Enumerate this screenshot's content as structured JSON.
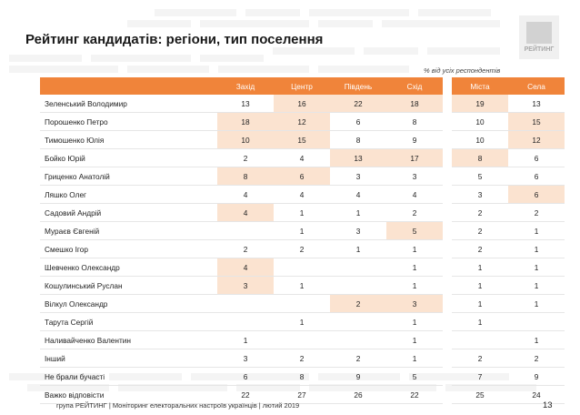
{
  "title": "Рейтинг кандидатів: регіони, тип поселення",
  "logo_text": "РЕЙТИНГ",
  "note": "% від усіх респондентів",
  "columns": [
    "Захід",
    "Центр",
    "Південь",
    "Схід",
    "Міста",
    "Села"
  ],
  "rows": [
    {
      "name": "Зеленський Володимир",
      "v": [
        "13",
        "16",
        "22",
        "18",
        "19",
        "13"
      ],
      "hl": [
        false,
        true,
        true,
        true,
        true,
        false
      ]
    },
    {
      "name": "Порошенко Петро",
      "v": [
        "18",
        "12",
        "6",
        "8",
        "10",
        "15"
      ],
      "hl": [
        true,
        true,
        false,
        false,
        false,
        true
      ]
    },
    {
      "name": "Тимошенко Юлія",
      "v": [
        "10",
        "15",
        "8",
        "9",
        "10",
        "12"
      ],
      "hl": [
        true,
        true,
        false,
        false,
        false,
        true
      ]
    },
    {
      "name": "Бойко Юрій",
      "v": [
        "2",
        "4",
        "13",
        "17",
        "8",
        "6"
      ],
      "hl": [
        false,
        false,
        true,
        true,
        true,
        false
      ]
    },
    {
      "name": "Гриценко Анатолій",
      "v": [
        "8",
        "6",
        "3",
        "3",
        "5",
        "6"
      ],
      "hl": [
        true,
        true,
        false,
        false,
        false,
        false
      ]
    },
    {
      "name": "Ляшко Олег",
      "v": [
        "4",
        "4",
        "4",
        "4",
        "3",
        "6"
      ],
      "hl": [
        false,
        false,
        false,
        false,
        false,
        true
      ]
    },
    {
      "name": "Садовий Андрій",
      "v": [
        "4",
        "1",
        "1",
        "2",
        "2",
        "2"
      ],
      "hl": [
        true,
        false,
        false,
        false,
        false,
        false
      ]
    },
    {
      "name": "Мураєв Євгеній",
      "v": [
        "",
        "1",
        "3",
        "5",
        "2",
        "1"
      ],
      "hl": [
        false,
        false,
        false,
        true,
        false,
        false
      ]
    },
    {
      "name": "Смешко Ігор",
      "v": [
        "2",
        "2",
        "1",
        "1",
        "2",
        "1"
      ],
      "hl": [
        false,
        false,
        false,
        false,
        false,
        false
      ]
    },
    {
      "name": "Шевченко Олександр",
      "v": [
        "4",
        "",
        "",
        "1",
        "1",
        "1"
      ],
      "hl": [
        true,
        false,
        false,
        false,
        false,
        false
      ]
    },
    {
      "name": "Кошулинський Руслан",
      "v": [
        "3",
        "1",
        "",
        "1",
        "1",
        "1"
      ],
      "hl": [
        true,
        false,
        false,
        false,
        false,
        false
      ]
    },
    {
      "name": "Вілкул Олександр",
      "v": [
        "",
        "",
        "2",
        "3",
        "1",
        "1"
      ],
      "hl": [
        false,
        false,
        true,
        true,
        false,
        false
      ]
    },
    {
      "name": "Тарута Сергій",
      "v": [
        "",
        "1",
        "",
        "1",
        "1",
        ""
      ],
      "hl": [
        false,
        false,
        false,
        false,
        false,
        false
      ]
    },
    {
      "name": "Наливайченко Валентин",
      "v": [
        "1",
        "",
        "",
        "1",
        "",
        "1"
      ],
      "hl": [
        false,
        false,
        false,
        false,
        false,
        false
      ]
    },
    {
      "name": "Інший",
      "v": [
        "3",
        "2",
        "2",
        "1",
        "2",
        "2"
      ],
      "hl": [
        false,
        false,
        false,
        false,
        false,
        false
      ]
    },
    {
      "name": "Не брали бучасті",
      "v": [
        "6",
        "8",
        "9",
        "5",
        "7",
        "9"
      ],
      "hl": [
        false,
        false,
        false,
        false,
        false,
        false
      ]
    },
    {
      "name": "Важко відповісти",
      "v": [
        "22",
        "27",
        "26",
        "22",
        "25",
        "24"
      ],
      "hl": [
        false,
        false,
        false,
        false,
        false,
        false
      ]
    }
  ],
  "footer": "група РЕЙТИНГ | Моніторинг електоральних настроїв українців | лютий 2019",
  "page_number": "13"
}
